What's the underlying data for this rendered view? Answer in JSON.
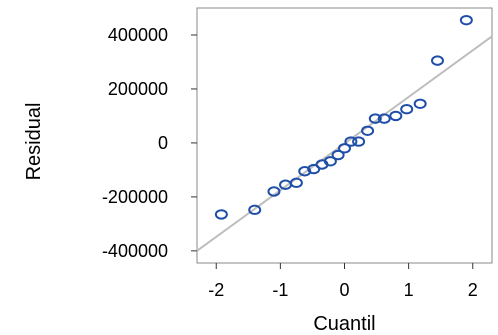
{
  "chart_data": {
    "type": "scatter",
    "title": "",
    "xlabel": "Cuantil",
    "ylabel": "Residual",
    "xlim": [
      -2.3,
      2.3
    ],
    "ylim": [
      -445000,
      500000
    ],
    "x_ticks": [
      -2,
      -1,
      0,
      1,
      2
    ],
    "x_tick_labels": [
      "-2",
      "-1",
      "0",
      "1",
      "2"
    ],
    "y_ticks": [
      -400000,
      -200000,
      0,
      200000,
      400000
    ],
    "y_tick_labels": [
      "-400000",
      "-200000",
      "0",
      "200000",
      "400000"
    ],
    "grid": false,
    "legend": "none",
    "colors": {
      "points": "#1f4ea8",
      "reference_line": "#bdbdbd",
      "frame": "#8a8a8a"
    },
    "points": [
      {
        "x": -1.92,
        "y": -265000
      },
      {
        "x": -1.4,
        "y": -248000
      },
      {
        "x": -1.1,
        "y": -180000
      },
      {
        "x": -0.92,
        "y": -155000
      },
      {
        "x": -0.75,
        "y": -148000
      },
      {
        "x": -0.62,
        "y": -105000
      },
      {
        "x": -0.48,
        "y": -97000
      },
      {
        "x": -0.35,
        "y": -80000
      },
      {
        "x": -0.22,
        "y": -68000
      },
      {
        "x": -0.1,
        "y": -45000
      },
      {
        "x": 0.0,
        "y": -20000
      },
      {
        "x": 0.1,
        "y": 5000
      },
      {
        "x": 0.22,
        "y": 5000
      },
      {
        "x": 0.36,
        "y": 45000
      },
      {
        "x": 0.48,
        "y": 90000
      },
      {
        "x": 0.62,
        "y": 90000
      },
      {
        "x": 0.8,
        "y": 100000
      },
      {
        "x": 0.97,
        "y": 125000
      },
      {
        "x": 1.18,
        "y": 145000
      },
      {
        "x": 1.45,
        "y": 305000
      },
      {
        "x": 1.9,
        "y": 455000
      }
    ],
    "reference_line": {
      "x": [
        -2.3,
        2.3
      ],
      "y": [
        -400000,
        395000
      ]
    }
  }
}
